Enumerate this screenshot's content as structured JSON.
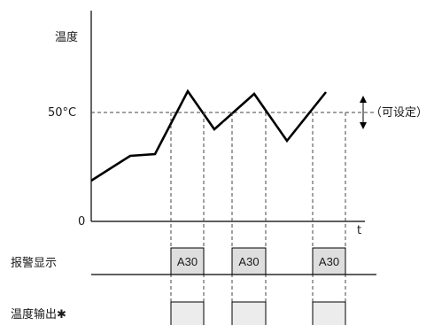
{
  "labels": {
    "y_axis": "温度",
    "setpoint": "50°C",
    "origin": "0",
    "x_axis": "t",
    "adjustable": "（可设定）",
    "alarm_row": "报警显示",
    "output_row": "温度输出✱"
  },
  "alarm_boxes": [
    "A30",
    "A30",
    "A30"
  ]
}
